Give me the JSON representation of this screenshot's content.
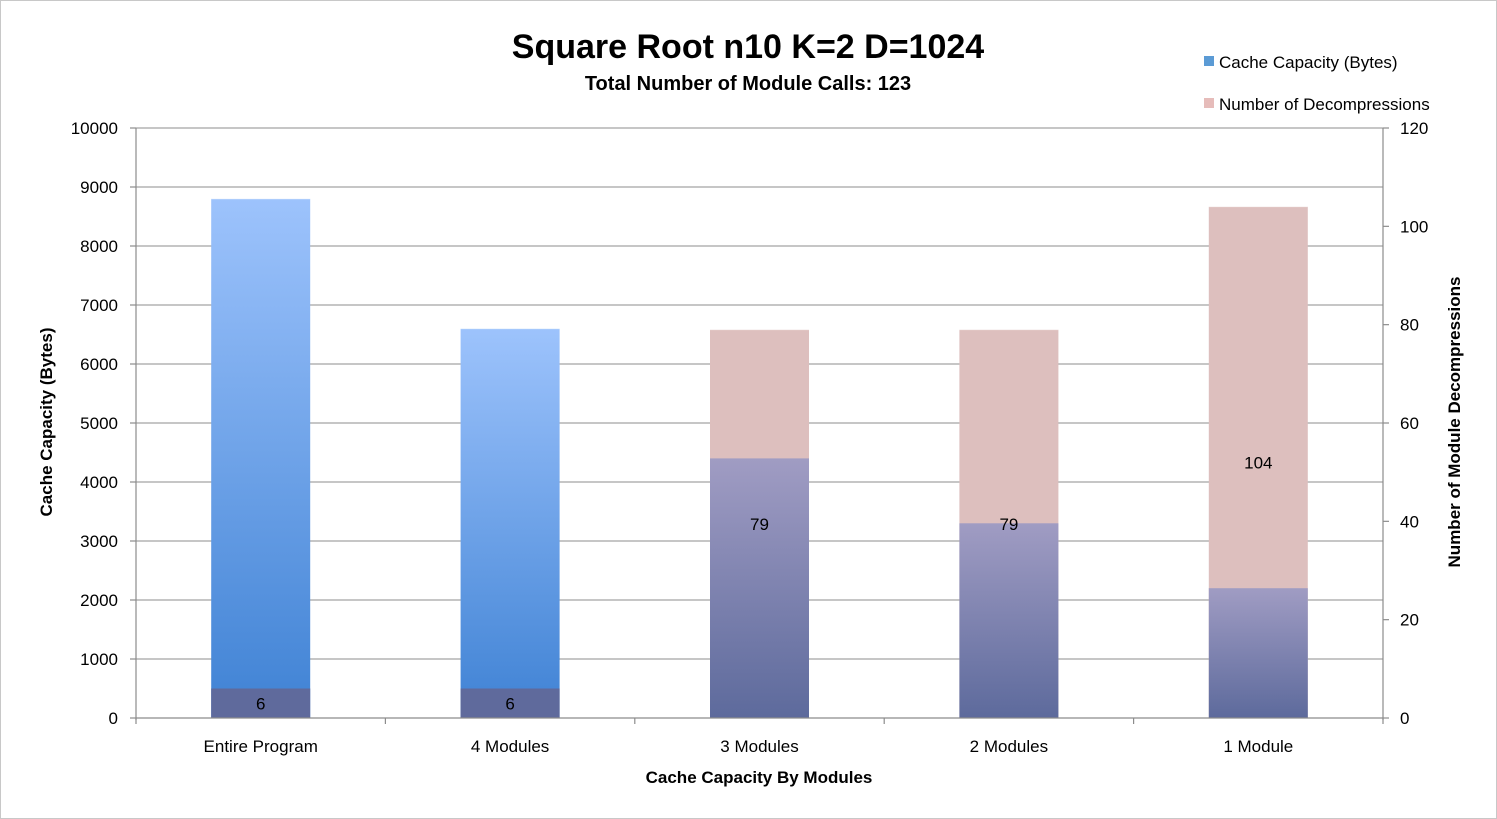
{
  "chart_data": {
    "type": "bar",
    "title": "Square Root n10 K=2 D=1024",
    "subtitle": "Total Number of Module Calls: 123",
    "xlabel": "Cache Capacity By Modules",
    "ylabel": "Cache Capacity (Bytes)",
    "y2label": "Number of Module Decompressions",
    "categories": [
      "Entire Program",
      "4 Modules",
      "3 Modules",
      "2 Modules",
      "1 Module"
    ],
    "ylim": [
      0,
      10000
    ],
    "yticks": [
      0,
      1000,
      2000,
      3000,
      4000,
      5000,
      6000,
      7000,
      8000,
      9000,
      10000
    ],
    "y2lim": [
      0,
      120
    ],
    "y2ticks": [
      0,
      20,
      40,
      60,
      80,
      100,
      120
    ],
    "grid": true,
    "legend_position": "top-right",
    "series": [
      {
        "name": "Cache Capacity (Bytes)",
        "axis": "left",
        "color": "#5b9bd5",
        "values": [
          8800,
          6600,
          4400,
          3300,
          2200
        ]
      },
      {
        "name": "Number of Decompressions",
        "axis": "right",
        "color": "#e6bcba",
        "values": [
          6,
          6,
          79,
          79,
          104
        ]
      }
    ],
    "data_labels": [
      "6",
      "6",
      "79",
      "79",
      "104"
    ]
  }
}
